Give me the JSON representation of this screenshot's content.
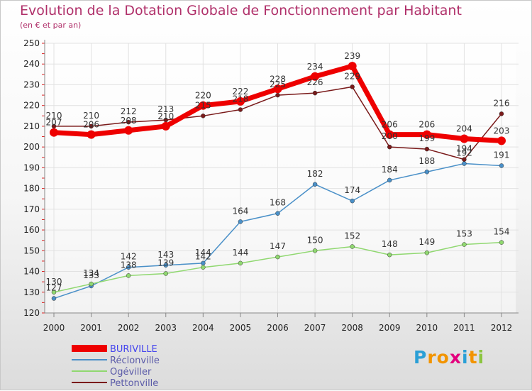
{
  "header": {
    "title": "Evolution de la Dotation Globale de Fonctionnement par Habitant",
    "subtitle": "(en € et par an)"
  },
  "logo": {
    "letters": [
      "P",
      "r",
      "o",
      "x",
      "i",
      "t",
      "i"
    ],
    "colors": [
      "#2a9fd6",
      "#f29400",
      "#f29400",
      "#e3007e",
      "#2a9fd6",
      "#f29400",
      "#8bc53f"
    ]
  },
  "chart_data": {
    "type": "line",
    "categories": [
      "2000",
      "2001",
      "2002",
      "2003",
      "2004",
      "2005",
      "2006",
      "2007",
      "2008",
      "2009",
      "2010",
      "2011",
      "2012"
    ],
    "ylim": [
      120,
      250
    ],
    "yticks": [
      120,
      130,
      140,
      150,
      160,
      170,
      180,
      190,
      200,
      210,
      220,
      230,
      240,
      250
    ],
    "grid": true,
    "legend_position": "bottom-left",
    "series": [
      {
        "name": "BURIVILLE",
        "color": "#ee0000",
        "values": [
          207,
          206,
          208,
          210,
          220,
          222,
          228,
          234,
          239,
          206,
          206,
          204,
          203
        ]
      },
      {
        "name": "Réclonville",
        "color": "#4a90c8",
        "values": [
          127,
          133,
          142,
          143,
          144,
          164,
          168,
          182,
          174,
          184,
          188,
          192,
          191
        ]
      },
      {
        "name": "Ogéviller",
        "color": "#90d870",
        "values": [
          130,
          134,
          138,
          139,
          142,
          144,
          147,
          150,
          152,
          148,
          149,
          153,
          154
        ]
      },
      {
        "name": "Pettonville",
        "color": "#7a1a1a",
        "values": [
          210,
          210,
          212,
          213,
          215,
          218,
          225,
          226,
          229,
          200,
          199,
          194,
          216
        ]
      }
    ]
  }
}
